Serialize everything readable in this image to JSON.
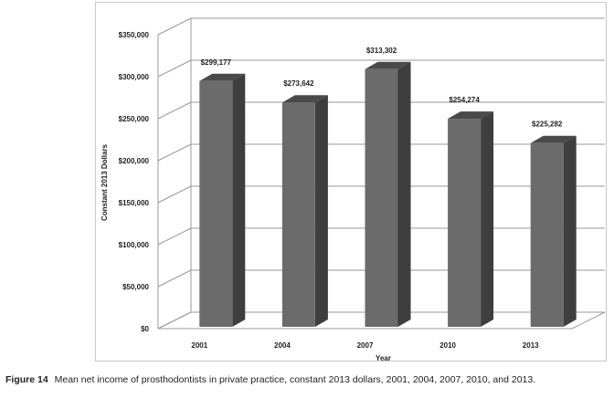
{
  "chart_data": {
    "type": "bar",
    "style": "3d-column",
    "categories": [
      "2001",
      "2004",
      "2007",
      "2010",
      "2013"
    ],
    "values": [
      299177,
      273642,
      313302,
      254274,
      225282
    ],
    "data_labels": [
      "$299,177",
      "$273,642",
      "$313,302",
      "$254,274",
      "$225,282"
    ],
    "yticks": [
      "$0",
      "$50,000",
      "$100,000",
      "$150,000",
      "$200,000",
      "$250,000",
      "$300,000",
      "$350,000"
    ],
    "ytick_values": [
      0,
      50000,
      100000,
      150000,
      200000,
      250000,
      300000,
      350000
    ],
    "ylim": [
      0,
      350000
    ],
    "xlabel": "Year",
    "ylabel": "Constant 2013 Dollars",
    "grid": true,
    "legend": "none"
  },
  "caption": {
    "label": "Figure 14",
    "text": "Mean net income of prosthodontists in private practice, constant 2013 dollars, 2001, 2004, 2007, 2010, and 2013."
  },
  "colors": {
    "bar_front": "#6b6b6b",
    "bar_side": "#3e3e3e",
    "bar_top": "#4a4a4a",
    "grid": "#9a9a9a",
    "text": "#222222"
  }
}
